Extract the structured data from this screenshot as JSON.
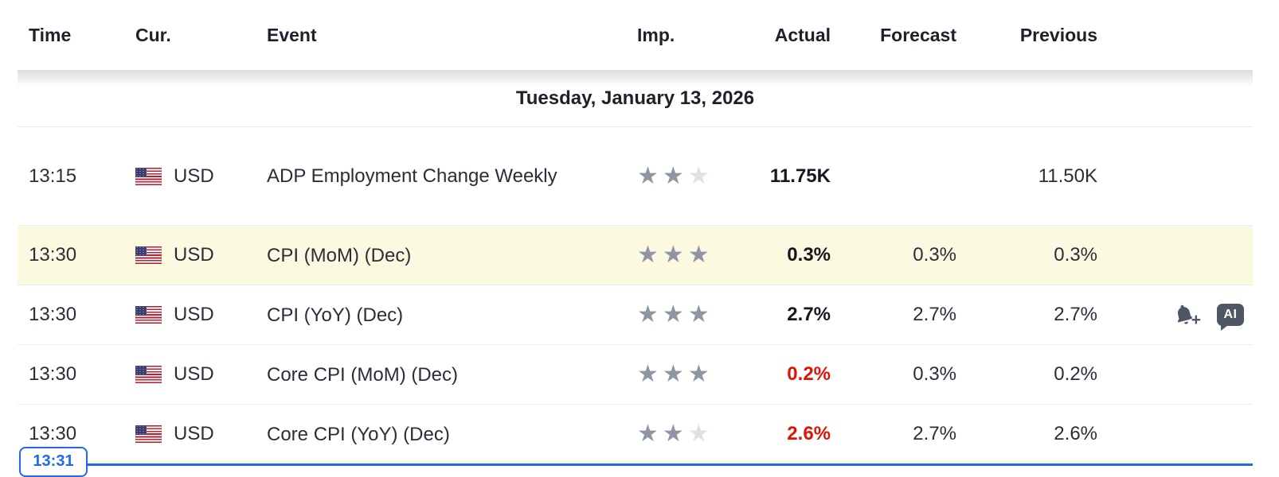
{
  "table": {
    "columns": {
      "time": "Time",
      "currency": "Cur.",
      "event": "Event",
      "importance": "Imp.",
      "actual": "Actual",
      "forecast": "Forecast",
      "previous": "Previous"
    },
    "date_header": "Tuesday, January 13, 2026",
    "rows": [
      {
        "time": "13:15",
        "currency": "USD",
        "event": "ADP Employment Change Weekly",
        "importance": 2,
        "actual": "11.75K",
        "forecast": "",
        "previous": "11.50K",
        "actual_color": "#14181f",
        "highlighted": false
      },
      {
        "time": "13:30",
        "currency": "USD",
        "event": "CPI (MoM) (Dec)",
        "importance": 3,
        "actual": "0.3%",
        "forecast": "0.3%",
        "previous": "0.3%",
        "actual_color": "#14181f",
        "highlighted": true
      },
      {
        "time": "13:30",
        "currency": "USD",
        "event": "CPI (YoY) (Dec)",
        "importance": 3,
        "actual": "2.7%",
        "forecast": "2.7%",
        "previous": "2.7%",
        "actual_color": "#14181f",
        "highlighted": false,
        "has_actions": true
      },
      {
        "time": "13:30",
        "currency": "USD",
        "event": "Core CPI (MoM) (Dec)",
        "importance": 3,
        "actual": "0.2%",
        "forecast": "0.3%",
        "previous": "0.2%",
        "actual_color": "#e01400",
        "highlighted": false
      },
      {
        "time": "13:30",
        "currency": "USD",
        "event": "Core CPI (YoY) (Dec)",
        "importance": 2,
        "actual": "2.6%",
        "forecast": "2.7%",
        "previous": "2.6%",
        "actual_color": "#e01400",
        "highlighted": false
      }
    ],
    "current_time_marker": {
      "label": "13:31"
    }
  },
  "icons": {
    "ai_label": "AI",
    "bell_plus": "+"
  },
  "colors": {
    "highlight_row": "#fcf9e1",
    "actual_negative": "#e01400",
    "marker_blue": "#2567ec",
    "star_on": "#8f96a3",
    "star_off": "#dde0e6"
  }
}
